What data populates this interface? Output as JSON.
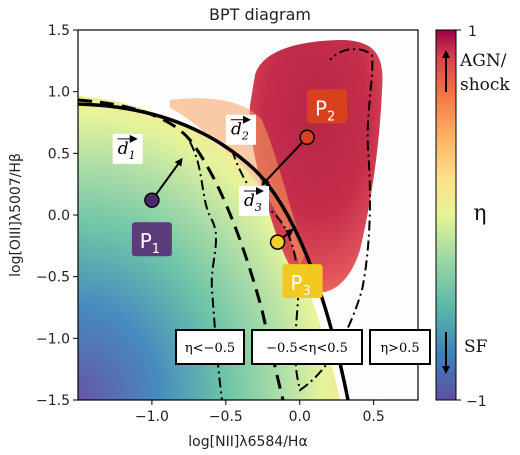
{
  "chart_data": {
    "type": "scatter",
    "title": "BPT diagram",
    "xlabel": "log[NII]λ6584/Hα",
    "ylabel": "log[OIII]λ5007/Hβ",
    "xlim": [
      -1.5,
      0.8
    ],
    "ylim": [
      -1.5,
      1.5
    ],
    "xticks": [
      -1.0,
      -0.5,
      0.0,
      0.5
    ],
    "xtick_labels": [
      "−1.0",
      "−0.5",
      "0.0",
      "0.5"
    ],
    "yticks": [
      -1.5,
      -1.0,
      -0.5,
      0.0,
      0.5,
      1.0,
      1.5
    ],
    "ytick_labels": [
      "−1.5",
      "−1.0",
      "−0.5",
      "0.0",
      "0.5",
      "1.0",
      "1.5"
    ],
    "grid": false,
    "points": [
      {
        "label": "P",
        "subscript": "1",
        "x": -1.0,
        "y": 0.12,
        "color": "#4a2a6e",
        "label_bg": "#5c3b7d"
      },
      {
        "label": "P",
        "subscript": "2",
        "x": 0.05,
        "y": 0.63,
        "color": "#d9401e",
        "label_bg": "#d9401e"
      },
      {
        "label": "P",
        "subscript": "3",
        "x": -0.15,
        "y": -0.22,
        "color": "#f4d12a",
        "label_bg": "#f2c91e"
      }
    ],
    "vectors": [
      {
        "label": "d",
        "subscript": "1"
      },
      {
        "label": "d",
        "subscript": "2"
      },
      {
        "label": "d",
        "subscript": "3"
      }
    ],
    "region_boxes": [
      "η<−0.5",
      "−0.5<η<0.5",
      "η>0.5"
    ],
    "colorbar": {
      "label": "η",
      "min_label": "−1",
      "max_label": "1",
      "top_annotation_line1": "AGN/",
      "top_annotation_line2": "shock",
      "bottom_annotation": "SF",
      "colormap": "spectral"
    }
  }
}
